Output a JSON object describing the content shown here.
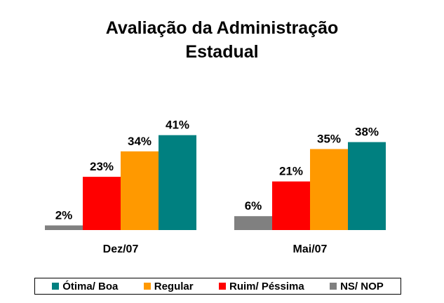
{
  "chart_data": {
    "type": "bar",
    "title": "Avaliação da Administração Estadual",
    "title_lines": [
      "Avaliação da Administração",
      "Estadual"
    ],
    "categories": [
      "Dez/07",
      "Mai/07"
    ],
    "series": [
      {
        "name": "NS/ NOP",
        "color": "#808080",
        "values": [
          2,
          6
        ],
        "labels": [
          "2%",
          "6%"
        ]
      },
      {
        "name": "Ruim/ Péssima",
        "color": "#ff0000",
        "values": [
          23,
          21
        ],
        "labels": [
          "23%",
          "21%"
        ]
      },
      {
        "name": "Regular",
        "color": "#ff9900",
        "values": [
          34,
          35
        ],
        "labels": [
          "34%",
          "35%"
        ]
      },
      {
        "name": "Ótima/ Boa",
        "color": "#008080",
        "values": [
          41,
          38
        ],
        "labels": [
          "41%",
          "38%"
        ]
      }
    ],
    "legend_order": [
      "Ótima/ Boa",
      "Regular",
      "Ruim/ Péssima",
      "NS/ NOP"
    ],
    "legend_position": "bottom",
    "grid": false,
    "xlabel": "",
    "ylabel": "",
    "ylim": [
      0,
      45
    ]
  }
}
